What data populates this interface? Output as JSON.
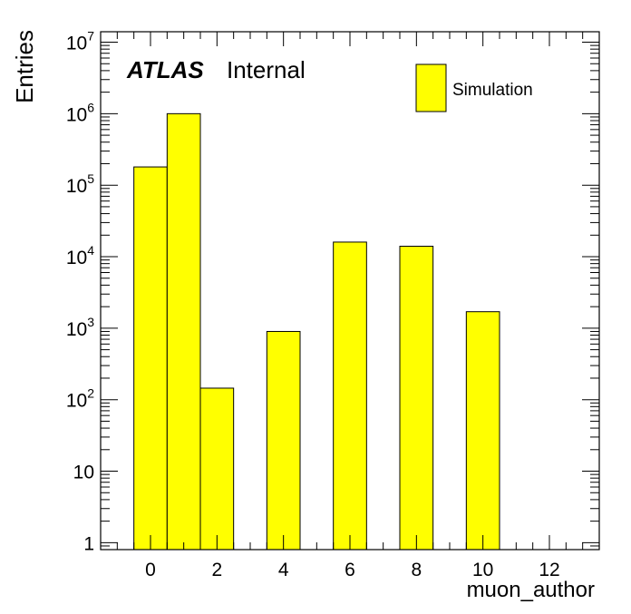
{
  "chart_data": {
    "type": "bar",
    "title": "",
    "experiment": "ATLAS",
    "status": "Internal",
    "xlabel": "muon_author",
    "ylabel": "Entries",
    "xlim": [
      -1.5,
      13.5
    ],
    "ylim": [
      0.8,
      14000000
    ],
    "log_y": true,
    "grid": false,
    "legend": {
      "placement": "top-right",
      "entries": [
        "Simulation"
      ]
    },
    "fill_color": "#ffff00",
    "edge_color": "#000000",
    "x_ticks": [
      0,
      2,
      4,
      6,
      8,
      10,
      12
    ],
    "x_tick_labels": [
      "0",
      "2",
      "4",
      "6",
      "8",
      "10",
      "12"
    ],
    "y_ticks": [
      1,
      10,
      100,
      1000,
      10000,
      100000,
      1000000,
      10000000
    ],
    "y_tick_labels": [
      {
        "base": "1",
        "exp": ""
      },
      {
        "base": "10",
        "exp": ""
      },
      {
        "base": "10",
        "exp": "2"
      },
      {
        "base": "10",
        "exp": "3"
      },
      {
        "base": "10",
        "exp": "4"
      },
      {
        "base": "10",
        "exp": "5"
      },
      {
        "base": "10",
        "exp": "6"
      },
      {
        "base": "10",
        "exp": "7"
      }
    ],
    "bin_width": 1,
    "series": [
      {
        "name": "Simulation",
        "x": [
          0,
          1,
          2,
          4,
          6,
          8,
          10
        ],
        "values": [
          180000,
          1000000,
          145,
          900,
          16000,
          14000,
          1700
        ]
      }
    ]
  }
}
